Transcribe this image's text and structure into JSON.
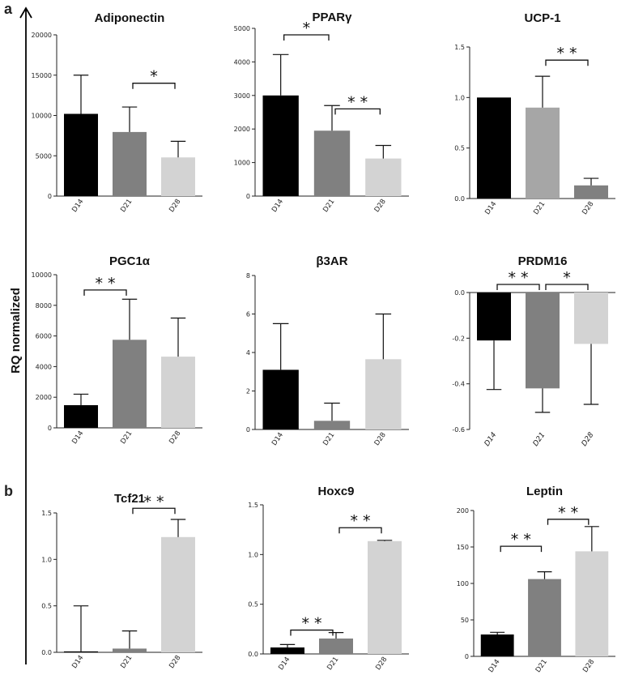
{
  "figure": {
    "y_axis_label": "RQ normalized",
    "panel_labels": [
      "a",
      "b"
    ]
  },
  "chart_data": [
    {
      "type": "bar",
      "title": "Adiponectin",
      "categories": [
        "D14",
        "D21",
        "D28"
      ],
      "values": [
        10200,
        7950,
        4800
      ],
      "errors": [
        4800,
        3100,
        2000
      ],
      "ylim": [
        0,
        20000
      ],
      "yticks": [
        0,
        5000,
        10000,
        15000,
        20000
      ],
      "ytick_labels": [
        "0",
        "5000",
        "10000",
        "15000",
        "20000"
      ],
      "significance": [
        {
          "from": 1,
          "to": 2,
          "label": "*"
        }
      ]
    },
    {
      "type": "bar",
      "title": "PPARγ",
      "categories": [
        "D14",
        "D21",
        "D28"
      ],
      "values": [
        3000,
        1950,
        1120
      ],
      "errors": [
        1220,
        750,
        390
      ],
      "ylim": [
        0,
        5000
      ],
      "yticks": [
        0,
        1000,
        2000,
        3000,
        4000,
        5000
      ],
      "ytick_labels": [
        "0",
        "1000",
        "2000",
        "3000",
        "4000",
        "5000"
      ],
      "significance": [
        {
          "from": 0,
          "to": 1,
          "label": "*"
        },
        {
          "from": 1,
          "to": 2,
          "label": "* *"
        }
      ]
    },
    {
      "type": "bar",
      "title": "UCP-1",
      "categories": [
        "D14",
        "D21",
        "D28"
      ],
      "values": [
        1.0,
        0.9,
        0.13
      ],
      "errors": [
        0,
        0.31,
        0.07
      ],
      "ylim": [
        0,
        1.5
      ],
      "yticks": [
        0,
        0.5,
        1.0,
        1.5
      ],
      "ytick_labels": [
        "0.0",
        "0.5",
        "1.0",
        "1.5"
      ],
      "significance": [
        {
          "from": 1,
          "to": 2,
          "label": "* *"
        }
      ]
    },
    {
      "type": "bar",
      "title": "PGC1α",
      "categories": [
        "D14",
        "D21",
        "D28"
      ],
      "values": [
        1480,
        5750,
        4650
      ],
      "errors": [
        720,
        2650,
        2520
      ],
      "ylim": [
        0,
        10000
      ],
      "yticks": [
        0,
        2000,
        4000,
        6000,
        8000,
        10000
      ],
      "ytick_labels": [
        "0",
        "2000",
        "4000",
        "6000",
        "8000",
        "10000"
      ],
      "significance": [
        {
          "from": 0,
          "to": 1,
          "label": "* *"
        }
      ]
    },
    {
      "type": "bar",
      "title": "β3AR",
      "categories": [
        "D14",
        "D21",
        "D28"
      ],
      "values": [
        3.1,
        0.45,
        3.65
      ],
      "errors": [
        2.4,
        0.92,
        2.35
      ],
      "ylim": [
        0,
        8
      ],
      "yticks": [
        0,
        2,
        4,
        6,
        8
      ],
      "ytick_labels": [
        "0",
        "2",
        "4",
        "6",
        "8"
      ],
      "significance": []
    },
    {
      "type": "bar",
      "title": "PRDM16",
      "categories": [
        "D14",
        "D21",
        "D28"
      ],
      "values": [
        -0.21,
        -0.42,
        -0.225
      ],
      "errors": [
        0.215,
        0.105,
        0.265
      ],
      "ylim": [
        -0.6,
        0.0
      ],
      "yticks": [
        -0.6,
        -0.4,
        -0.2,
        0.0
      ],
      "ytick_labels": [
        "-0.6",
        "-0.4",
        "-0.2",
        "0.0"
      ],
      "italic_categories": true,
      "significance": [
        {
          "from": 0,
          "to": 1,
          "label": "* *"
        },
        {
          "from": 1,
          "to": 2,
          "label": "*"
        }
      ]
    },
    {
      "type": "bar",
      "title": "Tcf21",
      "categories": [
        "D14",
        "D21",
        "D28"
      ],
      "values": [
        0.01,
        0.04,
        1.24
      ],
      "errors": [
        0.49,
        0.19,
        0.19
      ],
      "ylim": [
        0,
        1.5
      ],
      "yticks": [
        0,
        0.5,
        1.0,
        1.5
      ],
      "ytick_labels": [
        "0.0",
        "0.5",
        "1.0",
        "1.5"
      ],
      "significance": [
        {
          "from": 1,
          "to": 2,
          "label": "* *"
        }
      ]
    },
    {
      "type": "bar",
      "title": "Hoxc9",
      "categories": [
        "D14",
        "D21",
        "D28"
      ],
      "values": [
        0.065,
        0.155,
        1.135
      ],
      "errors": [
        0.03,
        0.06,
        0.008
      ],
      "ylim": [
        0,
        1.5
      ],
      "yticks": [
        0,
        0.5,
        1.0,
        1.5
      ],
      "ytick_labels": [
        "0.0",
        "0.5",
        "1.0",
        "1.5"
      ],
      "significance": [
        {
          "from": 0,
          "to": 1,
          "label": "* *"
        },
        {
          "from": 1,
          "to": 2,
          "label": "* *"
        }
      ]
    },
    {
      "type": "bar",
      "title": "Leptin",
      "categories": [
        "D14",
        "D21",
        "D28"
      ],
      "values": [
        30,
        106,
        144
      ],
      "errors": [
        3,
        10,
        34
      ],
      "ylim": [
        0,
        200
      ],
      "yticks": [
        0,
        50,
        100,
        150,
        200
      ],
      "ytick_labels": [
        "0",
        "50",
        "100",
        "150",
        "200"
      ],
      "significance": [
        {
          "from": 0,
          "to": 1,
          "label": "* *"
        },
        {
          "from": 1,
          "to": 2,
          "label": "* *"
        }
      ]
    }
  ],
  "colors": {
    "bars": [
      "#000000",
      "#808080",
      "#d3d3d3"
    ],
    "bars_ucp1": [
      "#000000",
      "#a6a6a6",
      "#808080"
    ],
    "axis": "#222222"
  }
}
